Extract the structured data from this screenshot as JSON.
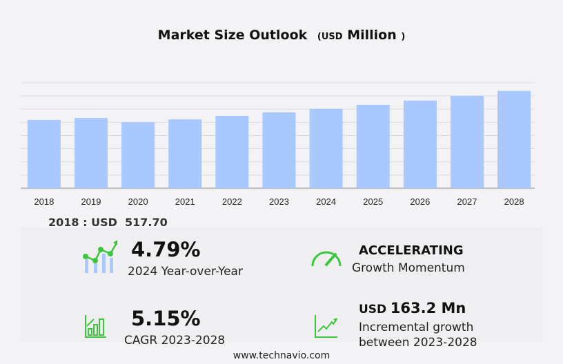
{
  "title": {
    "main": "Market Size Outlook",
    "open": "(",
    "unit": "USD",
    "rest": "Million",
    "close": ")"
  },
  "chart_data": {
    "type": "bar",
    "categories": [
      "2018",
      "2019",
      "2020",
      "2021",
      "2022",
      "2023",
      "2024",
      "2025",
      "2026",
      "2027",
      "2028"
    ],
    "values": [
      517.7,
      533,
      501,
      522,
      549,
      575,
      602,
      633,
      665,
      701,
      738
    ],
    "ylim": [
      0,
      800
    ],
    "grid": true,
    "bar_color": "#a8c8ff",
    "xlabel": "",
    "ylabel": ""
  },
  "base_label": "2018 : USD  517.70",
  "stats": {
    "yoy": {
      "value": "4.79%",
      "label": "2024 Year-over-Year"
    },
    "momentum": {
      "value": "ACCELERATING",
      "label": "Growth Momentum"
    },
    "cagr": {
      "value": "5.15%",
      "label": "CAGR 2023-2028"
    },
    "incremental": {
      "prefix": "USD",
      "value": "163.2 Mn",
      "label1": "Incremental growth",
      "label2": "between 2023-2028"
    }
  },
  "footer": "www.technavio.com",
  "colors": {
    "accent": "#3cc63c",
    "bar": "#a8c8ff"
  }
}
